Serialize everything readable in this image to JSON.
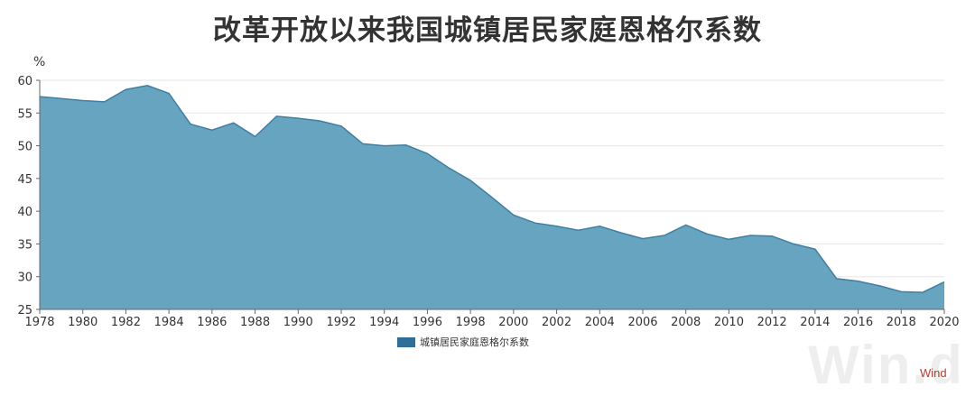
{
  "title": "改革开放以来我国城镇居民家庭恩格尔系数",
  "watermark": "Win.d",
  "source": "Wind",
  "colors": {
    "fill": "#5f9fbd",
    "line": "#3f7fa3",
    "legend": "#2e6f9a",
    "grid": "#e6e6e6",
    "axis": "#666666"
  },
  "chart_data": {
    "type": "area",
    "title": "改革开放以来我国城镇居民家庭恩格尔系数",
    "ylabel": "%",
    "xlabel": "",
    "ylim": [
      25,
      60
    ],
    "yticks": [
      25,
      30,
      35,
      40,
      45,
      50,
      55,
      60
    ],
    "xlim": [
      1978,
      2020
    ],
    "xticks": [
      1978,
      1980,
      1982,
      1984,
      1986,
      1988,
      1990,
      1992,
      1994,
      1996,
      1998,
      2000,
      2002,
      2004,
      2006,
      2008,
      2010,
      2012,
      2014,
      2016,
      2018,
      2020
    ],
    "grid": true,
    "legend_position": "bottom",
    "series": [
      {
        "name": "城镇居民家庭恩格尔系数",
        "x": [
          1978,
          1979,
          1980,
          1981,
          1982,
          1983,
          1984,
          1985,
          1986,
          1987,
          1988,
          1989,
          1990,
          1991,
          1992,
          1993,
          1994,
          1995,
          1996,
          1997,
          1998,
          1999,
          2000,
          2001,
          2002,
          2003,
          2004,
          2005,
          2006,
          2007,
          2008,
          2009,
          2010,
          2011,
          2012,
          2013,
          2014,
          2015,
          2016,
          2017,
          2018,
          2019,
          2020
        ],
        "values": [
          57.5,
          57.2,
          56.9,
          56.7,
          58.6,
          59.2,
          58.0,
          53.3,
          52.4,
          53.5,
          51.4,
          54.5,
          54.2,
          53.8,
          53.0,
          50.3,
          50.0,
          50.1,
          48.8,
          46.6,
          44.7,
          42.1,
          39.4,
          38.2,
          37.7,
          37.1,
          37.7,
          36.7,
          35.8,
          36.3,
          37.9,
          36.5,
          35.7,
          36.3,
          36.2,
          35.0,
          34.2,
          29.7,
          29.3,
          28.6,
          27.7,
          27.6,
          29.2
        ]
      }
    ]
  }
}
